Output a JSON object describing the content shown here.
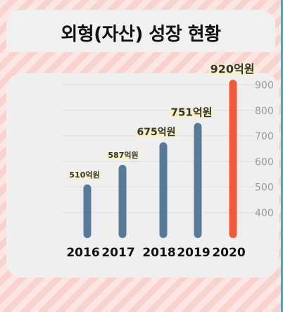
{
  "header": {
    "title": "외형(자산) 성장 현황"
  },
  "colors": {
    "bar": "#577a98",
    "highlight_bar": "#f15a38",
    "label_bg": "#f8efc4"
  },
  "chart_data": {
    "type": "bar",
    "title": "외형(자산) 성장 현황",
    "categories": [
      "2016",
      "2017",
      "2018",
      "2019",
      "2020"
    ],
    "values": [
      510,
      587,
      675,
      751,
      920
    ],
    "value_labels": [
      "510억원",
      "587억원",
      "675억원",
      "751억원",
      "920억원"
    ],
    "unit": "억원",
    "highlight_index": 4,
    "xlabel": "",
    "ylabel": "",
    "ylim": [
      300,
      950
    ],
    "yticks": [
      400,
      500,
      600,
      700,
      800,
      900
    ],
    "ytick_side": "right",
    "grid": true,
    "legend": "none"
  }
}
